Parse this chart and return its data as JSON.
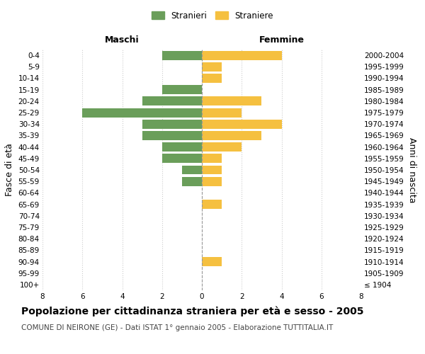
{
  "age_groups": [
    "100+",
    "95-99",
    "90-94",
    "85-89",
    "80-84",
    "75-79",
    "70-74",
    "65-69",
    "60-64",
    "55-59",
    "50-54",
    "45-49",
    "40-44",
    "35-39",
    "30-34",
    "25-29",
    "20-24",
    "15-19",
    "10-14",
    "5-9",
    "0-4"
  ],
  "birth_years": [
    "≤ 1904",
    "1905-1909",
    "1910-1914",
    "1915-1919",
    "1920-1924",
    "1925-1929",
    "1930-1934",
    "1935-1939",
    "1940-1944",
    "1945-1949",
    "1950-1954",
    "1955-1959",
    "1960-1964",
    "1965-1969",
    "1970-1974",
    "1975-1979",
    "1980-1984",
    "1985-1989",
    "1990-1994",
    "1995-1999",
    "2000-2004"
  ],
  "males": [
    0,
    0,
    0,
    0,
    0,
    0,
    0,
    0,
    0,
    1,
    1,
    2,
    2,
    3,
    3,
    6,
    3,
    2,
    0,
    0,
    2
  ],
  "females": [
    0,
    0,
    1,
    0,
    0,
    0,
    0,
    1,
    0,
    1,
    1,
    1,
    2,
    3,
    4,
    2,
    3,
    0,
    1,
    1,
    4
  ],
  "male_color": "#6a9e5a",
  "female_color": "#f5c040",
  "bar_height": 0.8,
  "xlim": 8,
  "title": "Popolazione per cittadinanza straniera per età e sesso - 2005",
  "subtitle": "COMUNE DI NEIRONE (GE) - Dati ISTAT 1° gennaio 2005 - Elaborazione TUTTITALIA.IT",
  "ylabel_left": "Fasce di età",
  "ylabel_right": "Anni di nascita",
  "xlabel_left": "Maschi",
  "xlabel_right": "Femmine",
  "legend_stranieri": "Stranieri",
  "legend_straniere": "Straniere",
  "background_color": "#ffffff",
  "grid_color": "#cccccc",
  "title_fontsize": 10,
  "subtitle_fontsize": 7.5,
  "tick_fontsize": 7.5,
  "label_fontsize": 9
}
